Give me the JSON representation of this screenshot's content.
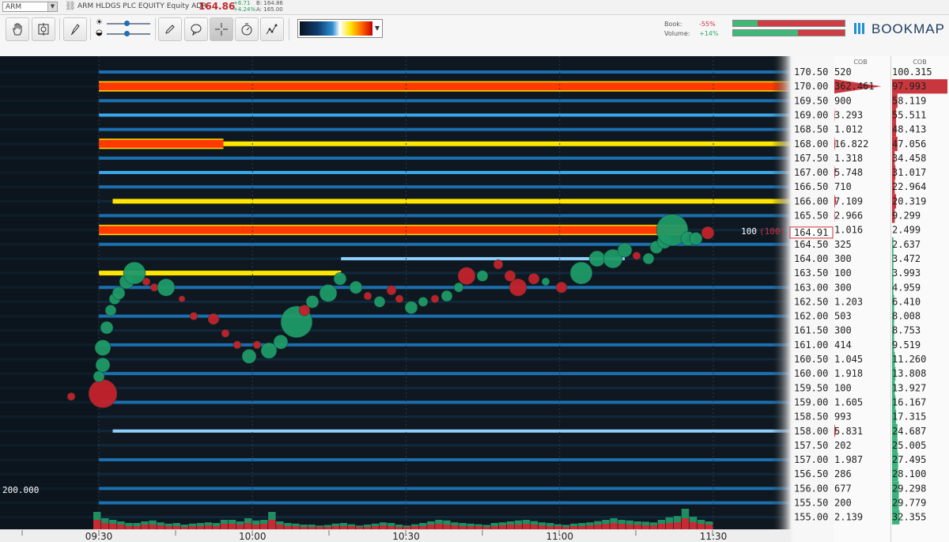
{
  "info_bar": {
    "symbol": "ARM",
    "instrument": "ARM HLDGS PLC EQUITY Equity ADR",
    "last_price": "164.86",
    "change_abs": "+6.71",
    "change_pct": "+4.24%",
    "bid": "B: 164.86",
    "ask": "A: 165.00",
    "price_color": "#c0272d",
    "change_color": "#1f9f5c"
  },
  "toolbar": {
    "buttons": [
      {
        "icon": "hand-icon"
      },
      {
        "icon": "crosshair-target-icon"
      },
      {
        "icon": "brush-icon"
      },
      {
        "icon": "pencil-icon"
      },
      {
        "icon": "speech-bubble-icon"
      },
      {
        "icon": "crosshair-icon"
      },
      {
        "icon": "stopwatch-icon"
      },
      {
        "icon": "line-chart-icon"
      }
    ],
    "sliders": [
      {
        "icon": "brightness-icon",
        "value": 0.45
      },
      {
        "icon": "contrast-icon",
        "value": 0.45
      }
    ],
    "book_label": "Book:",
    "book_value": "-55%",
    "volume_label": "Volume:",
    "volume_value": "+14%",
    "book_value_color": "#d0303a",
    "volume_value_color": "#2eaa6a",
    "book_meter": {
      "green": 0.22,
      "red": 0.78
    },
    "volume_meter": {
      "green": 0.58,
      "red": 0.42
    },
    "brand": "BOOKMAP"
  },
  "panels": {
    "cob_header_1": "COB",
    "cob_header_2": "COB"
  },
  "current_price": {
    "price": "164.91",
    "level": 164.91,
    "label_size": "100",
    "label_size_paren": "(100)"
  },
  "left_axis_label": "200.000",
  "chart_data": {
    "type": "heatmap",
    "x_ticks": [
      "09:30",
      "10:00",
      "10:30",
      "11:00",
      "11:30"
    ],
    "price_levels": [
      {
        "price": "170.50",
        "book": "520",
        "cob": "100.315"
      },
      {
        "price": "170.00",
        "book": "362.461",
        "cob": "97.993"
      },
      {
        "price": "169.50",
        "book": "900",
        "cob": "58.119"
      },
      {
        "price": "169.00",
        "book": "3.293",
        "cob": "55.511"
      },
      {
        "price": "168.50",
        "book": "1.012",
        "cob": "48.413"
      },
      {
        "price": "168.00",
        "book": "16.822",
        "cob": "47.056"
      },
      {
        "price": "167.50",
        "book": "1.318",
        "cob": "34.458"
      },
      {
        "price": "167.00",
        "book": "5.748",
        "cob": "31.017"
      },
      {
        "price": "166.50",
        "book": "710",
        "cob": "22.964"
      },
      {
        "price": "166.00",
        "book": "7.109",
        "cob": "20.319"
      },
      {
        "price": "165.50",
        "book": "2.966",
        "cob": "9.299"
      },
      {
        "price": "",
        "book": "1.016",
        "cob": "2.499"
      },
      {
        "price": "164.50",
        "book": "325",
        "cob": "2.637"
      },
      {
        "price": "164.00",
        "book": "300",
        "cob": "3.472"
      },
      {
        "price": "163.50",
        "book": "100",
        "cob": "3.993"
      },
      {
        "price": "163.00",
        "book": "300",
        "cob": "4.959"
      },
      {
        "price": "162.50",
        "book": "1.203",
        "cob": "6.410"
      },
      {
        "price": "162.00",
        "book": "503",
        "cob": "8.008"
      },
      {
        "price": "161.50",
        "book": "300",
        "cob": "8.753"
      },
      {
        "price": "161.00",
        "book": "414",
        "cob": "9.519"
      },
      {
        "price": "160.50",
        "book": "1.045",
        "cob": "11.260"
      },
      {
        "price": "160.00",
        "book": "1.918",
        "cob": "13.808"
      },
      {
        "price": "159.50",
        "book": "100",
        "cob": "13.927"
      },
      {
        "price": "159.00",
        "book": "1.605",
        "cob": "16.167"
      },
      {
        "price": "158.50",
        "book": "993",
        "cob": "17.315"
      },
      {
        "price": "158.00",
        "book": "5.831",
        "cob": "24.687"
      },
      {
        "price": "157.50",
        "book": "202",
        "cob": "25.005"
      },
      {
        "price": "157.00",
        "book": "1.987",
        "cob": "27.495"
      },
      {
        "price": "156.50",
        "book": "286",
        "cob": "28.100"
      },
      {
        "price": "156.00",
        "book": "677",
        "cob": "29.298"
      },
      {
        "price": "155.50",
        "book": "200",
        "cob": "29.779"
      },
      {
        "price": "155.00",
        "book": "2.139",
        "cob": "32.355"
      }
    ],
    "liquidity_bands": [
      {
        "price": 170.0,
        "intensity": 1.0,
        "start": 0.0,
        "end": 1.0
      },
      {
        "price": 168.0,
        "intensity": 0.95,
        "start": 0.0,
        "end": 0.18
      },
      {
        "price": 168.0,
        "intensity": 0.7,
        "start": 0.18,
        "end": 1.0
      },
      {
        "price": 166.0,
        "intensity": 0.65,
        "start": 0.02,
        "end": 1.0
      },
      {
        "price": 165.0,
        "intensity": 1.0,
        "start": 0.0,
        "end": 0.85
      },
      {
        "price": 164.0,
        "intensity": 0.55,
        "start": 0.35,
        "end": 0.76
      },
      {
        "price": 163.5,
        "intensity": 0.6,
        "start": 0.0,
        "end": 0.35
      },
      {
        "price": 169.0,
        "intensity": 0.4,
        "start": 0.0,
        "end": 1.0
      },
      {
        "price": 167.0,
        "intensity": 0.42,
        "start": 0.0,
        "end": 1.0
      },
      {
        "price": 158.0,
        "intensity": 0.45,
        "start": 0.02,
        "end": 1.0
      },
      {
        "price": 170.5,
        "intensity": 0.3,
        "start": 0.0,
        "end": 1.0
      },
      {
        "price": 169.5,
        "intensity": 0.3,
        "start": 0.0,
        "end": 1.0
      },
      {
        "price": 164.5,
        "intensity": 0.32,
        "start": 0.0,
        "end": 1.0
      },
      {
        "price": 165.5,
        "intensity": 0.28,
        "start": 0.0,
        "end": 1.0
      },
      {
        "price": 166.5,
        "intensity": 0.25,
        "start": 0.0,
        "end": 1.0
      },
      {
        "price": 167.5,
        "intensity": 0.25,
        "start": 0.0,
        "end": 1.0
      },
      {
        "price": 168.5,
        "intensity": 0.25,
        "start": 0.0,
        "end": 1.0
      },
      {
        "price": 163.0,
        "intensity": 0.3,
        "start": 0.0,
        "end": 1.0
      },
      {
        "price": 162.0,
        "intensity": 0.28,
        "start": 0.0,
        "end": 1.0
      },
      {
        "price": 161.0,
        "intensity": 0.25,
        "start": 0.0,
        "end": 1.0
      },
      {
        "price": 160.0,
        "intensity": 0.3,
        "start": 0.0,
        "end": 1.0
      },
      {
        "price": 159.0,
        "intensity": 0.25,
        "start": 0.0,
        "end": 1.0
      },
      {
        "price": 157.0,
        "intensity": 0.25,
        "start": 0.0,
        "end": 1.0
      },
      {
        "price": 156.0,
        "intensity": 0.28,
        "start": 0.0,
        "end": 1.0
      },
      {
        "price": 155.5,
        "intensity": 0.2,
        "start": 0.0,
        "end": 1.0
      }
    ],
    "trades": [
      {
        "t": 0.13,
        "p": 159.3,
        "side": "sell",
        "size": 18
      },
      {
        "t": 0.09,
        "p": 159.2,
        "side": "sell",
        "size": 5
      },
      {
        "t": 0.125,
        "p": 159.9,
        "side": "buy",
        "size": 7
      },
      {
        "t": 0.13,
        "p": 160.3,
        "side": "buy",
        "size": 9
      },
      {
        "t": 0.13,
        "p": 160.9,
        "side": "buy",
        "size": 10
      },
      {
        "t": 0.135,
        "p": 161.6,
        "side": "buy",
        "size": 8
      },
      {
        "t": 0.14,
        "p": 162.2,
        "side": "buy",
        "size": 7
      },
      {
        "t": 0.145,
        "p": 162.6,
        "side": "buy",
        "size": 7
      },
      {
        "t": 0.15,
        "p": 162.8,
        "side": "buy",
        "size": 8
      },
      {
        "t": 0.16,
        "p": 163.2,
        "side": "buy",
        "size": 9
      },
      {
        "t": 0.17,
        "p": 163.5,
        "side": "buy",
        "size": 14
      },
      {
        "t": 0.185,
        "p": 163.2,
        "side": "red",
        "size": 5
      },
      {
        "t": 0.195,
        "p": 163.0,
        "side": "sell",
        "size": 5
      },
      {
        "t": 0.21,
        "p": 163.0,
        "side": "buy",
        "size": 11
      },
      {
        "t": 0.23,
        "p": 162.6,
        "side": "sell",
        "size": 4
      },
      {
        "t": 0.245,
        "p": 162.0,
        "side": "sell",
        "size": 5
      },
      {
        "t": 0.27,
        "p": 161.9,
        "side": "sell",
        "size": 7
      },
      {
        "t": 0.285,
        "p": 161.4,
        "side": "sell",
        "size": 5
      },
      {
        "t": 0.3,
        "p": 161.0,
        "side": "sell",
        "size": 5
      },
      {
        "t": 0.315,
        "p": 160.6,
        "side": "buy",
        "size": 9
      },
      {
        "t": 0.325,
        "p": 161.0,
        "side": "sell",
        "size": 5
      },
      {
        "t": 0.34,
        "p": 160.8,
        "side": "buy",
        "size": 10
      },
      {
        "t": 0.355,
        "p": 161.1,
        "side": "buy",
        "size": 9
      },
      {
        "t": 0.375,
        "p": 161.8,
        "side": "buy",
        "size": 20
      },
      {
        "t": 0.385,
        "p": 162.2,
        "side": "sell",
        "size": 7
      },
      {
        "t": 0.395,
        "p": 162.5,
        "side": "buy",
        "size": 8
      },
      {
        "t": 0.415,
        "p": 162.8,
        "side": "buy",
        "size": 11
      },
      {
        "t": 0.43,
        "p": 163.3,
        "side": "buy",
        "size": 8
      },
      {
        "t": 0.45,
        "p": 163.0,
        "side": "buy",
        "size": 8
      },
      {
        "t": 0.465,
        "p": 162.7,
        "side": "sell",
        "size": 5
      },
      {
        "t": 0.48,
        "p": 162.5,
        "side": "buy",
        "size": 7
      },
      {
        "t": 0.495,
        "p": 162.9,
        "side": "sell",
        "size": 6
      },
      {
        "t": 0.505,
        "p": 162.6,
        "side": "sell",
        "size": 5
      },
      {
        "t": 0.52,
        "p": 162.3,
        "side": "buy",
        "size": 8
      },
      {
        "t": 0.535,
        "p": 162.5,
        "side": "buy",
        "size": 6
      },
      {
        "t": 0.55,
        "p": 162.6,
        "side": "sell",
        "size": 5
      },
      {
        "t": 0.565,
        "p": 162.7,
        "side": "buy",
        "size": 7
      },
      {
        "t": 0.58,
        "p": 163.0,
        "side": "buy",
        "size": 6
      },
      {
        "t": 0.59,
        "p": 163.4,
        "side": "sell",
        "size": 11
      },
      {
        "t": 0.61,
        "p": 163.4,
        "side": "buy",
        "size": 7
      },
      {
        "t": 0.63,
        "p": 163.8,
        "side": "sell",
        "size": 6
      },
      {
        "t": 0.645,
        "p": 163.4,
        "side": "sell",
        "size": 7
      },
      {
        "t": 0.655,
        "p": 163.0,
        "side": "sell",
        "size": 11
      },
      {
        "t": 0.675,
        "p": 163.3,
        "side": "sell",
        "size": 7
      },
      {
        "t": 0.69,
        "p": 163.2,
        "side": "buy",
        "size": 5
      },
      {
        "t": 0.71,
        "p": 163.0,
        "side": "sell",
        "size": 7
      },
      {
        "t": 0.735,
        "p": 163.5,
        "side": "buy",
        "size": 14
      },
      {
        "t": 0.755,
        "p": 164.0,
        "side": "buy",
        "size": 10
      },
      {
        "t": 0.775,
        "p": 164.0,
        "side": "buy",
        "size": 12
      },
      {
        "t": 0.79,
        "p": 164.3,
        "side": "buy",
        "size": 9
      },
      {
        "t": 0.805,
        "p": 164.1,
        "side": "sell",
        "size": 5
      },
      {
        "t": 0.82,
        "p": 164.0,
        "side": "buy",
        "size": 7
      },
      {
        "t": 0.83,
        "p": 164.4,
        "side": "buy",
        "size": 8
      },
      {
        "t": 0.84,
        "p": 164.6,
        "side": "buy",
        "size": 9
      },
      {
        "t": 0.85,
        "p": 165.0,
        "side": "buy",
        "size": 20
      },
      {
        "t": 0.87,
        "p": 164.7,
        "side": "buy",
        "size": 9
      },
      {
        "t": 0.88,
        "p": 164.7,
        "side": "buy",
        "size": 8
      },
      {
        "t": 0.895,
        "p": 164.9,
        "side": "sell",
        "size": 8
      }
    ],
    "volume_bars": [
      0.55,
      0.35,
      0.3,
      0.25,
      0.2,
      0.2,
      0.25,
      0.28,
      0.22,
      0.18,
      0.2,
      0.15,
      0.18,
      0.2,
      0.22,
      0.2,
      0.3,
      0.3,
      0.25,
      0.35,
      0.28,
      0.3,
      0.55,
      0.25,
      0.2,
      0.18,
      0.15,
      0.15,
      0.12,
      0.14,
      0.18,
      0.2,
      0.16,
      0.12,
      0.15,
      0.18,
      0.22,
      0.2,
      0.15,
      0.12,
      0.16,
      0.2,
      0.25,
      0.3,
      0.28,
      0.22,
      0.2,
      0.18,
      0.16,
      0.14,
      0.2,
      0.22,
      0.25,
      0.28,
      0.3,
      0.26,
      0.22,
      0.2,
      0.16,
      0.14,
      0.18,
      0.2,
      0.22,
      0.26,
      0.3,
      0.35,
      0.3,
      0.28,
      0.25,
      0.24,
      0.22,
      0.3,
      0.38,
      0.42,
      0.65,
      0.4,
      0.3,
      0.25
    ],
    "cob_bars_right": [
      0.0,
      0.42,
      0.04,
      0.03,
      0.03,
      0.04,
      0.02,
      0.025,
      0.02,
      0.03,
      0.02,
      0.0,
      0.01,
      0.01,
      0.01,
      0.01,
      0.015,
      0.015,
      0.015,
      0.015,
      0.02,
      0.025,
      0.02,
      0.025,
      0.03,
      0.04,
      0.04,
      0.045,
      0.045,
      0.05,
      0.05,
      0.055
    ],
    "cob_bars_left": [
      0.0,
      0.35,
      0.0,
      0.005,
      0.0,
      0.01,
      0.0,
      0.01,
      0.0,
      0.015,
      0.005,
      0.0,
      0.0,
      0.0,
      0.0,
      0.0,
      0.0,
      0.0,
      0.0,
      0.0,
      0.0,
      0.0,
      0.0,
      0.0,
      0.0,
      0.015,
      0.0,
      0.0,
      0.0,
      0.0,
      0.0,
      0.0
    ]
  }
}
